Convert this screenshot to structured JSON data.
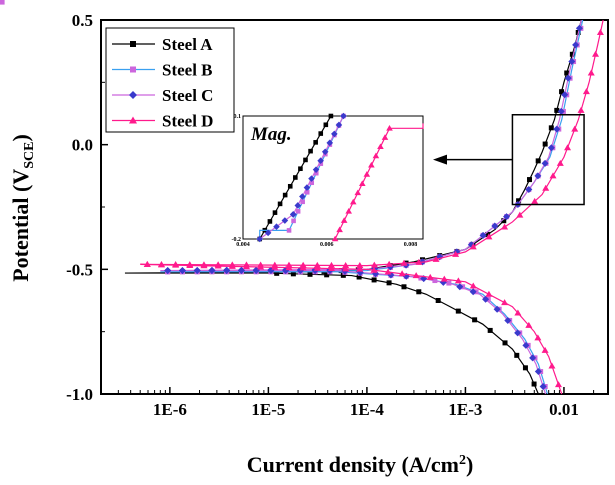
{
  "chart_data": {
    "type": "line",
    "xlabel": "Current density (A/cm",
    "xlabel_sup": "2",
    "xlabel_end": ")",
    "ylabel": "Potential (V",
    "ylabel_sub": "SCE",
    "ylabel_end": ")",
    "x_scale": "log",
    "xlim": [
      2e-07,
      0.028
    ],
    "ylim": [
      -1.0,
      0.5
    ],
    "x_ticks": [
      {
        "v": 1e-06,
        "label": "1E-6"
      },
      {
        "v": 1e-05,
        "label": "1E-5"
      },
      {
        "v": 0.0001,
        "label": "1E-4"
      },
      {
        "v": 0.001,
        "label": "1E-3"
      },
      {
        "v": 0.01,
        "label": "0.01"
      }
    ],
    "y_ticks": [
      {
        "v": 0.5,
        "label": "0.5"
      },
      {
        "v": 0.0,
        "label": "0.0"
      },
      {
        "v": -0.5,
        "label": "-0.5"
      },
      {
        "v": -1.0,
        "label": "-1.0"
      }
    ],
    "grid": false,
    "legend_placement": "top-left",
    "series": [
      {
        "name": "Steel A",
        "line_color": "#000000",
        "marker_color": "#000000",
        "marker": "square",
        "points": [
          [
            0.0055,
            -1.0
          ],
          [
            0.0045,
            -0.92
          ],
          [
            0.003,
            -0.82
          ],
          [
            0.0015,
            -0.72
          ],
          [
            0.0007,
            -0.65
          ],
          [
            0.0004,
            -0.6
          ],
          [
            0.0002,
            -0.56
          ],
          [
            7e-05,
            -0.525
          ],
          [
            1e-05,
            -0.515
          ],
          [
            3.5e-07,
            -0.515
          ],
          [
            3e-05,
            -0.51
          ],
          [
            0.0001,
            -0.5
          ],
          [
            0.0003,
            -0.47
          ],
          [
            0.001,
            -0.42
          ],
          [
            0.002,
            -0.34
          ],
          [
            0.003,
            -0.27
          ],
          [
            0.004,
            -0.18
          ],
          [
            0.005,
            -0.1
          ],
          [
            0.006,
            -0.03
          ],
          [
            0.008,
            0.1
          ],
          [
            0.01,
            0.25
          ],
          [
            0.013,
            0.4
          ],
          [
            0.015,
            0.5
          ]
        ]
      },
      {
        "name": "Steel B",
        "line_color": "#3aa0f0",
        "marker_color": "#cc66dd",
        "marker": "square",
        "points": [
          [
            0.0068,
            -1.0
          ],
          [
            0.0055,
            -0.88
          ],
          [
            0.004,
            -0.78
          ],
          [
            0.0025,
            -0.68
          ],
          [
            0.0015,
            -0.6
          ],
          [
            0.0008,
            -0.56
          ],
          [
            0.0003,
            -0.53
          ],
          [
            5e-05,
            -0.51
          ],
          [
            8e-07,
            -0.51
          ],
          [
            0.0001,
            -0.505
          ],
          [
            0.0003,
            -0.48
          ],
          [
            0.001,
            -0.42
          ],
          [
            0.003,
            -0.27
          ],
          [
            0.005,
            -0.15
          ],
          [
            0.0072,
            -0.05
          ],
          [
            0.0095,
            0.1
          ],
          [
            0.012,
            0.3
          ],
          [
            0.0155,
            0.5
          ]
        ]
      },
      {
        "name": "Steel C",
        "line_color": "#cc66dd",
        "marker_color": "#3a3acc",
        "marker": "diamond",
        "points": [
          [
            0.0065,
            -1.0
          ],
          [
            0.0052,
            -0.88
          ],
          [
            0.0038,
            -0.78
          ],
          [
            0.0024,
            -0.68
          ],
          [
            0.0014,
            -0.6
          ],
          [
            0.00075,
            -0.56
          ],
          [
            0.0003,
            -0.53
          ],
          [
            5e-05,
            -0.505
          ],
          [
            8e-07,
            -0.505
          ],
          [
            0.0001,
            -0.5
          ],
          [
            0.0003,
            -0.48
          ],
          [
            0.001,
            -0.42
          ],
          [
            0.003,
            -0.27
          ],
          [
            0.005,
            -0.15
          ],
          [
            0.007,
            -0.05
          ],
          [
            0.009,
            0.1
          ],
          [
            0.0115,
            0.3
          ],
          [
            0.015,
            0.5
          ]
        ]
      },
      {
        "name": "Steel D",
        "line_color": "#ff1a8c",
        "marker_color": "#ff1a8c",
        "marker": "triangle",
        "points": [
          [
            0.0095,
            -1.0
          ],
          [
            0.007,
            -0.85
          ],
          [
            0.005,
            -0.75
          ],
          [
            0.003,
            -0.65
          ],
          [
            0.001,
            -0.55
          ],
          [
            0.0001,
            -0.5
          ],
          [
            5e-07,
            -0.48
          ],
          [
            0.0001,
            -0.485
          ],
          [
            0.0004,
            -0.47
          ],
          [
            0.001,
            -0.43
          ],
          [
            0.003,
            -0.31
          ],
          [
            0.006,
            -0.2
          ],
          [
            0.01,
            -0.05
          ],
          [
            0.014,
            0.1
          ],
          [
            0.018,
            0.25
          ],
          [
            0.022,
            0.4
          ],
          [
            0.025,
            0.5
          ]
        ]
      }
    ],
    "inset": {
      "title": "Mag.",
      "xlim": [
        0.004,
        0.0083
      ],
      "ylim": [
        -0.2,
        -0.1
      ],
      "x_ticks": [
        {
          "v": 0.004,
          "label": "0.004"
        },
        {
          "v": 0.006,
          "label": "0.006"
        },
        {
          "v": 0.008,
          "label": "0.008"
        }
      ],
      "y_ticks": [
        {
          "v": -0.1,
          "label": "-0.1"
        },
        {
          "v": -0.2,
          "label": "-0.2"
        }
      ],
      "series": [
        {
          "name": "Steel A",
          "points": [
            [
              0.0044,
              -0.2
            ],
            [
              0.0061,
              -0.1
            ]
          ]
        },
        {
          "name": "Steel B",
          "points": [
            [
              0.0044,
              -0.2
            ],
            [
              0.0044,
              -0.193
            ],
            [
              0.0051,
              -0.193
            ],
            [
              0.0064,
              -0.1
            ]
          ]
        },
        {
          "name": "Steel C",
          "points": [
            [
              0.0044,
              -0.2
            ],
            [
              0.0052,
              -0.18
            ],
            [
              0.0064,
              -0.1
            ]
          ]
        },
        {
          "name": "Steel D",
          "points": [
            [
              0.0062,
              -0.2
            ],
            [
              0.0075,
              -0.11
            ],
            [
              0.0083,
              -0.11
            ],
            [
              0.0083,
              -0.106
            ]
          ]
        }
      ],
      "magnified_region": {
        "xlim": [
          0.003,
          0.016
        ],
        "ylim": [
          -0.24,
          0.12
        ]
      }
    }
  }
}
